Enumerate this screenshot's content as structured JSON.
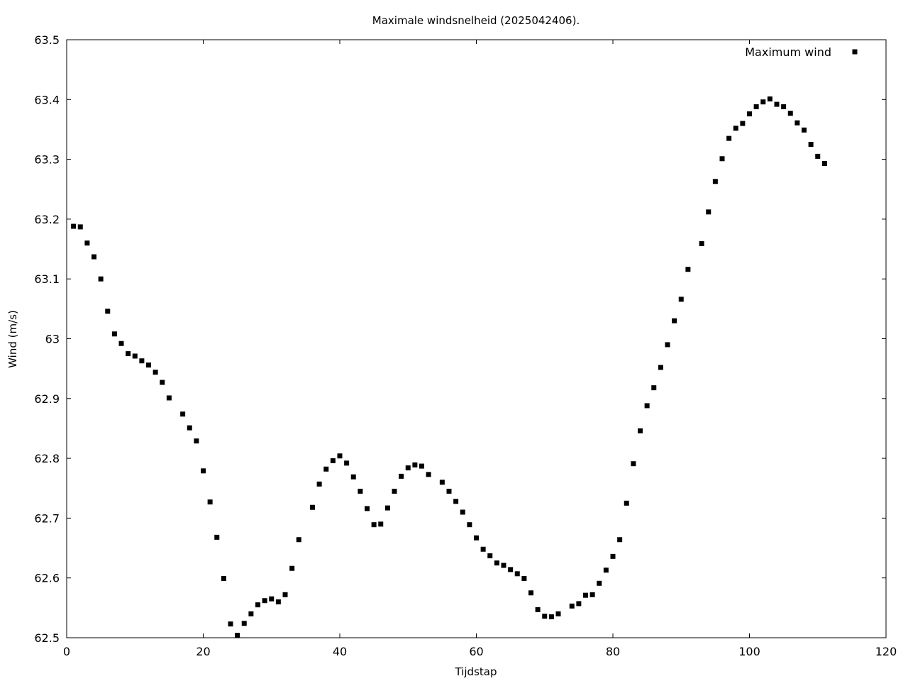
{
  "chart_data": {
    "type": "scatter",
    "title": "Maximale windsnelheid (2025042406).",
    "xlabel": "Tijdstap",
    "ylabel": "Wind (m/s)",
    "xlim": [
      0,
      120
    ],
    "ylim": [
      62.5,
      63.5
    ],
    "xticks": [
      "0",
      "20",
      "40",
      "60",
      "80",
      "100",
      "120"
    ],
    "yticks": [
      "62.5",
      "62.6",
      "62.7",
      "62.8",
      "62.9",
      "63",
      "63.1",
      "63.2",
      "63.3",
      "63.4",
      "63.5"
    ],
    "grid": false,
    "legend_position": "top-right",
    "marker_color": "#000000",
    "series": [
      {
        "name": "Maximum wind",
        "x": [
          1,
          2,
          3,
          4,
          5,
          6,
          7,
          8,
          9,
          10,
          11,
          12,
          13,
          14,
          15,
          17,
          18,
          19,
          20,
          21,
          22,
          23,
          24,
          25,
          26,
          27,
          28,
          29,
          30,
          31,
          32,
          33,
          34,
          36,
          37,
          38,
          39,
          40,
          41,
          42,
          43,
          44,
          45,
          46,
          47,
          48,
          49,
          50,
          51,
          52,
          53,
          55,
          56,
          57,
          58,
          59,
          60,
          61,
          62,
          63,
          64,
          65,
          66,
          67,
          68,
          69,
          70,
          71,
          72,
          74,
          75,
          76,
          77,
          78,
          79,
          80,
          81,
          82,
          83,
          84,
          85,
          86,
          87,
          88,
          89,
          90,
          91,
          93,
          94,
          95,
          96,
          97,
          98,
          99,
          100,
          101,
          102,
          103,
          104,
          105,
          106,
          107,
          108,
          109,
          110,
          111
        ],
        "y": [
          63.188,
          63.187,
          63.16,
          63.137,
          63.1,
          63.046,
          63.008,
          62.992,
          62.975,
          62.971,
          62.963,
          62.956,
          62.944,
          62.927,
          62.901,
          62.874,
          62.851,
          62.829,
          62.779,
          62.727,
          62.668,
          62.599,
          62.523,
          62.504,
          62.524,
          62.54,
          62.555,
          62.562,
          62.565,
          62.56,
          62.572,
          62.616,
          62.664,
          62.718,
          62.757,
          62.782,
          62.796,
          62.804,
          62.792,
          62.769,
          62.745,
          62.716,
          62.689,
          62.69,
          62.717,
          62.745,
          62.77,
          62.784,
          62.789,
          62.787,
          62.773,
          62.76,
          62.745,
          62.728,
          62.71,
          62.689,
          62.667,
          62.648,
          62.637,
          62.625,
          62.621,
          62.614,
          62.607,
          62.599,
          62.575,
          62.547,
          62.536,
          62.535,
          62.54,
          62.553,
          62.557,
          62.571,
          62.572,
          62.591,
          62.613,
          62.636,
          62.664,
          62.725,
          62.791,
          62.846,
          62.888,
          62.918,
          62.952,
          62.99,
          63.03,
          63.066,
          63.116,
          63.159,
          63.212,
          63.263,
          63.301,
          63.335,
          63.352,
          63.36,
          63.376,
          63.388,
          63.396,
          63.401,
          63.392,
          63.388,
          63.377,
          63.361,
          63.349,
          63.325,
          63.305,
          63.293
        ]
      }
    ]
  }
}
